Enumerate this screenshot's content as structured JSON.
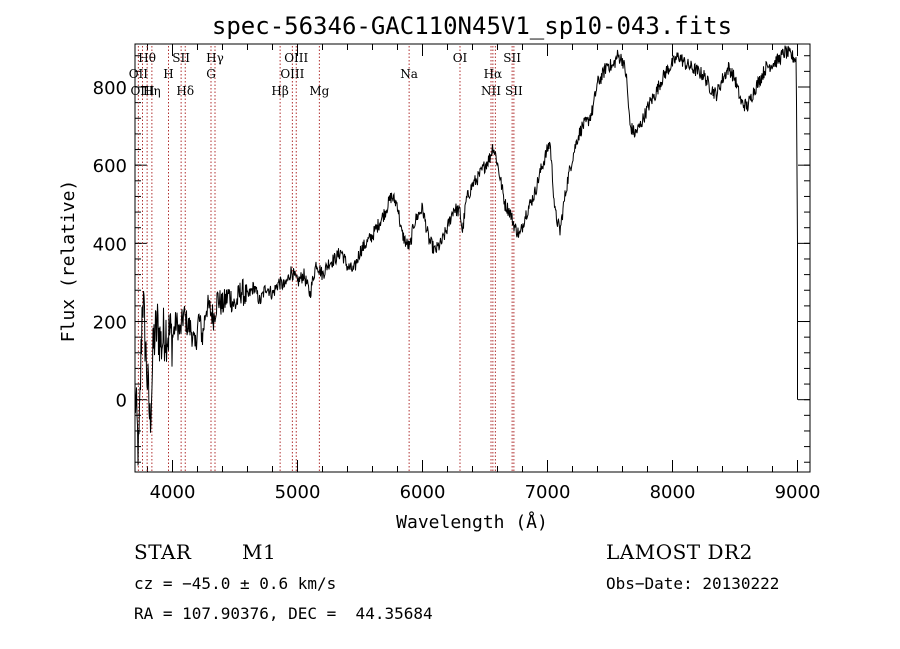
{
  "chart_data": {
    "type": "line",
    "title": "spec-56346-GAC110N45V1_sp10-043.fits",
    "xlabel": "Wavelength (Å)",
    "ylabel": "Flux (relative)",
    "xlim": [
      3700,
      9100
    ],
    "ylim": [
      -185,
      910
    ],
    "xticks": [
      4000,
      5000,
      6000,
      7000,
      8000,
      9000
    ],
    "yticks": [
      0,
      200,
      400,
      600,
      800
    ],
    "x_minor_step": 200,
    "y_minor_step": 40,
    "grid": false,
    "series": [
      {
        "x": [
          3700,
          3730,
          3760,
          3790,
          3820,
          3850,
          3880,
          3910,
          3940,
          3970,
          4000,
          4030,
          4060,
          4090,
          4120,
          4150,
          4180,
          4210,
          4240,
          4270,
          4300,
          4330,
          4360,
          4400,
          4450,
          4500,
          4550,
          4600,
          4650,
          4700,
          4750,
          4800,
          4850,
          4900,
          4950,
          5000,
          5050,
          5100,
          5150,
          5200,
          5250,
          5300,
          5350,
          5400,
          5450,
          5500,
          5550,
          5600,
          5650,
          5700,
          5750,
          5800,
          5830,
          5870,
          5900,
          5930,
          5960,
          6000,
          6050,
          6100,
          6150,
          6200,
          6250,
          6300,
          6320,
          6350,
          6400,
          6450,
          6500,
          6540,
          6563,
          6590,
          6620,
          6660,
          6700,
          6740,
          6780,
          6820,
          6860,
          6900,
          6940,
          6980,
          7020,
          7060,
          7100,
          7130,
          7160,
          7200,
          7240,
          7280,
          7320,
          7360,
          7400,
          7440,
          7480,
          7520,
          7560,
          7600,
          7630,
          7660,
          7700,
          7740,
          7780,
          7820,
          7860,
          7900,
          7950,
          8000,
          8050,
          8100,
          8150,
          8200,
          8250,
          8300,
          8350,
          8400,
          8450,
          8500,
          8550,
          8600,
          8650,
          8700,
          8750,
          8800,
          8850,
          8900,
          8950,
          8990,
          9000,
          9000
        ],
        "y": [
          20,
          -150,
          280,
          100,
          -60,
          150,
          190,
          140,
          180,
          170,
          160,
          200,
          170,
          220,
          190,
          180,
          130,
          210,
          160,
          240,
          230,
          210,
          260,
          240,
          270,
          240,
          280,
          260,
          290,
          250,
          290,
          270,
          300,
          290,
          330,
          300,
          320,
          270,
          350,
          320,
          350,
          360,
          380,
          340,
          330,
          380,
          400,
          420,
          450,
          480,
          520,
          500,
          430,
          400,
          390,
          450,
          470,
          490,
          410,
          380,
          400,
          440,
          490,
          480,
          430,
          510,
          550,
          570,
          600,
          620,
          650,
          620,
          570,
          500,
          480,
          440,
          420,
          470,
          500,
          530,
          580,
          620,
          660,
          480,
          430,
          500,
          560,
          620,
          670,
          700,
          710,
          740,
          810,
          830,
          860,
          850,
          880,
          870,
          830,
          700,
          680,
          700,
          730,
          760,
          780,
          810,
          840,
          860,
          880,
          860,
          850,
          840,
          830,
          800,
          780,
          820,
          850,
          820,
          760,
          750,
          790,
          820,
          850,
          860,
          870,
          890,
          880,
          870,
          400,
          0
        ],
        "x_dense_from": 3700,
        "x_dense_to": 9000
      }
    ],
    "lines": [
      {
        "label": "Hθ",
        "x": 3797,
        "row": 0
      },
      {
        "label": "OII",
        "x": 3727,
        "row": 1
      },
      {
        "label": "OIII",
        "x": 3760,
        "row": 2
      },
      {
        "label": "Hη",
        "x": 3835,
        "row": 2
      },
      {
        "label": "SII",
        "x": 4069,
        "row": 0
      },
      {
        "label": "H",
        "x": 3968,
        "row": 1
      },
      {
        "label": "Hδ",
        "x": 4102,
        "row": 2
      },
      {
        "label": "Hγ",
        "x": 4340,
        "row": 0
      },
      {
        "label": "G",
        "x": 4308,
        "row": 1
      },
      {
        "label": "OIII",
        "x": 4990,
        "row": 0
      },
      {
        "label": "OIII",
        "x": 4959,
        "row": 1
      },
      {
        "label": "Hβ",
        "x": 4861,
        "row": 2
      },
      {
        "label": "Mg",
        "x": 5175,
        "row": 2
      },
      {
        "label": "Na",
        "x": 5893,
        "row": 1
      },
      {
        "label": "OI",
        "x": 6300,
        "row": 0
      },
      {
        "label": "Hα",
        "x": 6563,
        "row": 1
      },
      {
        "label": "NII",
        "x": 6548,
        "row": 2
      },
      {
        "label": "SII",
        "x": 6717,
        "row": 0
      },
      {
        "label": "SII",
        "x": 6731,
        "row": 2
      }
    ],
    "line_positions": [
      3727,
      3760,
      3797,
      3835,
      3968,
      4069,
      4102,
      4308,
      4340,
      4861,
      4959,
      4990,
      5175,
      5893,
      6300,
      6548,
      6563,
      6583,
      6717,
      6731
    ]
  },
  "info": {
    "class": "STAR",
    "subclass": "M1",
    "survey": "LAMOST DR2",
    "cz": "cz = −45.0 ± 0.6 km/s",
    "obs_date": "Obs−Date: 20130222",
    "coords": "RA = 107.90376, DEC =  44.35684"
  }
}
